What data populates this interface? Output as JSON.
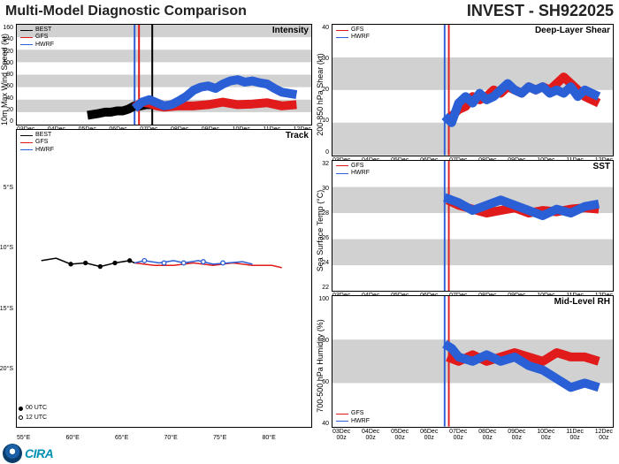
{
  "header": {
    "title_left": "Multi-Model Diagnostic Comparison",
    "title_right": "INVEST - SH922025"
  },
  "models": {
    "best": {
      "label": "BEST",
      "color": "#000000"
    },
    "gfs": {
      "label": "GFS",
      "color": "#e11b1b"
    },
    "hwrf": {
      "label": "HWRF",
      "color": "#2a5fd6"
    }
  },
  "colors": {
    "band": "#d1d1d1",
    "grid": "#c8c8c8",
    "bg": "#ffffff",
    "vline_gfs": "#e11b1b",
    "vline_hwrf": "#2a5fd6",
    "vline_best_main": "#000000"
  },
  "panels": {
    "intensity": {
      "title": "Intensity",
      "ylabel": "10m Max Wind Speed (kt)",
      "ylim": [
        0,
        160
      ],
      "ytick_step": 20,
      "bands_y": [
        [
          20,
          40
        ],
        [
          60,
          80
        ],
        [
          100,
          120
        ],
        [
          140,
          160
        ]
      ],
      "xlim": [
        0,
        10
      ],
      "xticks": [
        "03Dec\n00z",
        "04Dec\n00z",
        "05Dec\n00z",
        "06Dec\n00z",
        "07Dec\n00z",
        "08Dec\n00z",
        "09Dec\n00z",
        "10Dec\n00z",
        "11Dec\n00z",
        "12Dec\n00z"
      ],
      "vlines": [
        {
          "x": 4.0,
          "color": "#2a5fd6"
        },
        {
          "x": 4.15,
          "color": "#e11b1b"
        },
        {
          "x": 4.6,
          "color": "#000000"
        }
      ],
      "series": {
        "best": [
          [
            2.4,
            15
          ],
          [
            2.8,
            18
          ],
          [
            3.0,
            20
          ],
          [
            3.2,
            20
          ],
          [
            3.4,
            22
          ],
          [
            3.6,
            22
          ],
          [
            3.8,
            25
          ],
          [
            4.0,
            30
          ],
          [
            4.2,
            30
          ],
          [
            4.4,
            32
          ],
          [
            4.6,
            32
          ]
        ],
        "gfs": [
          [
            4.0,
            28
          ],
          [
            4.25,
            36
          ],
          [
            4.5,
            34
          ],
          [
            4.75,
            30
          ],
          [
            5.0,
            28
          ],
          [
            5.5,
            30
          ],
          [
            6.0,
            30
          ],
          [
            6.5,
            32
          ],
          [
            7.0,
            36
          ],
          [
            7.5,
            32
          ],
          [
            8.0,
            33
          ],
          [
            8.5,
            35
          ],
          [
            9.0,
            30
          ],
          [
            9.5,
            32
          ]
        ],
        "hwrf": [
          [
            4.0,
            26
          ],
          [
            4.25,
            36
          ],
          [
            4.5,
            40
          ],
          [
            4.75,
            35
          ],
          [
            5.0,
            30
          ],
          [
            5.25,
            32
          ],
          [
            5.5,
            38
          ],
          [
            5.75,
            45
          ],
          [
            6.0,
            55
          ],
          [
            6.25,
            60
          ],
          [
            6.5,
            62
          ],
          [
            6.75,
            58
          ],
          [
            7.0,
            65
          ],
          [
            7.25,
            70
          ],
          [
            7.5,
            72
          ],
          [
            7.75,
            68
          ],
          [
            8.0,
            70
          ],
          [
            8.25,
            67
          ],
          [
            8.5,
            65
          ],
          [
            8.75,
            58
          ],
          [
            9.0,
            52
          ],
          [
            9.25,
            50
          ],
          [
            9.5,
            48
          ]
        ]
      },
      "legend_pos": "top-left",
      "legend": [
        "best",
        "gfs",
        "hwrf"
      ]
    },
    "shear": {
      "title": "Deep-Layer Shear",
      "ylabel": "200-850 hPa Shear (kt)",
      "ylim": [
        0,
        40
      ],
      "ytick_step": 10,
      "bands_y": [
        [
          0,
          10
        ],
        [
          20,
          30
        ]
      ],
      "xlim": [
        0,
        10
      ],
      "xticks": [
        "03Dec\n00z",
        "04Dec\n00z",
        "05Dec\n00z",
        "06Dec\n00z",
        "07Dec\n00z",
        "08Dec\n00z",
        "09Dec\n00z",
        "10Dec\n00z",
        "11Dec\n00z",
        "12Dec\n00z"
      ],
      "vlines": [
        {
          "x": 4.0,
          "color": "#2a5fd6"
        },
        {
          "x": 4.15,
          "color": "#e11b1b"
        }
      ],
      "series": {
        "gfs": [
          [
            4.1,
            10
          ],
          [
            4.25,
            12
          ],
          [
            4.5,
            14
          ],
          [
            4.75,
            15
          ],
          [
            5.0,
            18
          ],
          [
            5.25,
            17
          ],
          [
            5.5,
            18
          ],
          [
            5.75,
            20
          ],
          [
            6.0,
            19
          ],
          [
            6.25,
            21
          ],
          [
            6.5,
            20
          ],
          [
            6.75,
            19
          ],
          [
            7.0,
            21
          ],
          [
            7.25,
            20
          ],
          [
            7.5,
            21
          ],
          [
            7.75,
            20
          ],
          [
            8.0,
            22
          ],
          [
            8.25,
            24
          ],
          [
            8.5,
            22
          ],
          [
            8.75,
            20
          ],
          [
            9.0,
            18
          ],
          [
            9.25,
            17
          ],
          [
            9.5,
            16
          ]
        ],
        "hwrf": [
          [
            4.0,
            12
          ],
          [
            4.25,
            10
          ],
          [
            4.5,
            16
          ],
          [
            4.75,
            18
          ],
          [
            5.0,
            16
          ],
          [
            5.25,
            19
          ],
          [
            5.5,
            17
          ],
          [
            5.75,
            18
          ],
          [
            6.0,
            20
          ],
          [
            6.25,
            22
          ],
          [
            6.5,
            20
          ],
          [
            6.75,
            19
          ],
          [
            7.0,
            21
          ],
          [
            7.25,
            20
          ],
          [
            7.5,
            21
          ],
          [
            7.75,
            19
          ],
          [
            8.0,
            20
          ],
          [
            8.25,
            19
          ],
          [
            8.5,
            21
          ],
          [
            8.75,
            18
          ],
          [
            9.0,
            20
          ],
          [
            9.25,
            19
          ],
          [
            9.5,
            18
          ]
        ]
      },
      "legend_pos": "top-left",
      "legend": [
        "gfs",
        "hwrf"
      ]
    },
    "sst": {
      "title": "SST",
      "ylabel": "Sea Surface Temp (°C)",
      "ylim": [
        22,
        32
      ],
      "ytick_step": 2,
      "bands_y": [
        [
          24,
          26
        ],
        [
          28,
          30
        ]
      ],
      "xlim": [
        0,
        10
      ],
      "xticks": [
        "03Dec\n00z",
        "04Dec\n00z",
        "05Dec\n00z",
        "06Dec\n00z",
        "07Dec\n00z",
        "08Dec\n00z",
        "09Dec\n00z",
        "10Dec\n00z",
        "11Dec\n00z",
        "12Dec\n00z"
      ],
      "vlines": [
        {
          "x": 4.0,
          "color": "#2a5fd6"
        },
        {
          "x": 4.15,
          "color": "#e11b1b"
        }
      ],
      "series": {
        "gfs": [
          [
            4.1,
            29
          ],
          [
            4.5,
            28.6
          ],
          [
            5.0,
            28.3
          ],
          [
            5.5,
            28
          ],
          [
            6.0,
            28.2
          ],
          [
            6.5,
            28.4
          ],
          [
            7.0,
            28
          ],
          [
            7.5,
            28.2
          ],
          [
            8.0,
            28.1
          ],
          [
            8.5,
            28.3
          ],
          [
            9.0,
            28.4
          ],
          [
            9.5,
            28.3
          ]
        ],
        "hwrf": [
          [
            4.0,
            29.2
          ],
          [
            4.5,
            28.8
          ],
          [
            5.0,
            28.2
          ],
          [
            5.5,
            28.6
          ],
          [
            6.0,
            29
          ],
          [
            6.5,
            28.6
          ],
          [
            7.0,
            28.2
          ],
          [
            7.5,
            27.8
          ],
          [
            8.0,
            28.3
          ],
          [
            8.5,
            28
          ],
          [
            9.0,
            28.5
          ],
          [
            9.5,
            28.7
          ]
        ]
      },
      "legend_pos": "top-left",
      "legend": [
        "gfs",
        "hwrf"
      ]
    },
    "rh": {
      "title": "Mid-Level RH",
      "ylabel": "700-500 hPa Humidity (%)",
      "ylim": [
        40,
        100
      ],
      "ytick_step": 20,
      "bands_y": [
        [
          60,
          80
        ]
      ],
      "xlim": [
        0,
        10
      ],
      "xticks": [
        "03Dec\n00z",
        "04Dec\n00z",
        "05Dec\n00z",
        "06Dec\n00z",
        "07Dec\n00z",
        "08Dec\n00z",
        "09Dec\n00z",
        "10Dec\n00z",
        "11Dec\n00z",
        "12Dec\n00z"
      ],
      "vlines": [
        {
          "x": 4.0,
          "color": "#2a5fd6"
        },
        {
          "x": 4.15,
          "color": "#e11b1b"
        }
      ],
      "series": {
        "gfs": [
          [
            4.1,
            72
          ],
          [
            4.5,
            70
          ],
          [
            5.0,
            73
          ],
          [
            5.5,
            70
          ],
          [
            6.0,
            72
          ],
          [
            6.5,
            74
          ],
          [
            7.0,
            72
          ],
          [
            7.5,
            70
          ],
          [
            8.0,
            74
          ],
          [
            8.5,
            72
          ],
          [
            9.0,
            72
          ],
          [
            9.5,
            70
          ]
        ],
        "hwrf": [
          [
            4.0,
            78
          ],
          [
            4.25,
            76
          ],
          [
            4.5,
            72
          ],
          [
            5.0,
            70
          ],
          [
            5.5,
            73
          ],
          [
            6.0,
            70
          ],
          [
            6.5,
            72
          ],
          [
            7.0,
            68
          ],
          [
            7.5,
            66
          ],
          [
            8.0,
            62
          ],
          [
            8.5,
            58
          ],
          [
            9.0,
            60
          ],
          [
            9.5,
            58
          ]
        ]
      },
      "legend_pos": "bot-left",
      "legend": [
        "gfs",
        "hwrf"
      ]
    },
    "track": {
      "title": "Track",
      "xlim": [
        55,
        85
      ],
      "ylim": [
        25,
        0
      ],
      "xticks": [
        "55°E",
        "60°E",
        "65°E",
        "70°E",
        "75°E",
        "80°E",
        ""
      ],
      "yticks": [
        "",
        "5°S",
        "10°S",
        "15°S",
        "20°S",
        ""
      ],
      "legend_pos": "top-left",
      "legend": [
        "best",
        "gfs",
        "hwrf"
      ],
      "utc_legend": [
        {
          "label": "00 UTC",
          "fill": "#000000"
        },
        {
          "label": "12 UTC",
          "fill": "none"
        }
      ],
      "series": {
        "best": [
          [
            57.5,
            11
          ],
          [
            59,
            10.8
          ],
          [
            60.5,
            11.3
          ],
          [
            62,
            11.2
          ],
          [
            63.5,
            11.5
          ],
          [
            65,
            11.2
          ],
          [
            66.5,
            11
          ],
          [
            67,
            11.2
          ]
        ],
        "gfs": [
          [
            67,
            11.2
          ],
          [
            69,
            11.4
          ],
          [
            71,
            11.4
          ],
          [
            73,
            11.2
          ],
          [
            75,
            11.4
          ],
          [
            77,
            11.2
          ],
          [
            79,
            11.4
          ],
          [
            81,
            11.4
          ],
          [
            82,
            11.6
          ]
        ],
        "hwrf": [
          [
            67,
            11.2
          ],
          [
            68,
            11
          ],
          [
            69.5,
            11.2
          ],
          [
            71,
            11
          ],
          [
            72,
            11.2
          ],
          [
            73.5,
            11
          ],
          [
            75,
            11.3
          ],
          [
            76.5,
            11.2
          ],
          [
            78,
            11.1
          ],
          [
            79,
            11.3
          ]
        ]
      },
      "markers": {
        "filled": [
          [
            60.5,
            11.3
          ],
          [
            63.5,
            11.5
          ],
          [
            62,
            11.2
          ],
          [
            65,
            11.2
          ],
          [
            66.5,
            11
          ]
        ],
        "open": [
          [
            68,
            11
          ],
          [
            70,
            11.2
          ],
          [
            72,
            11.2
          ],
          [
            74,
            11.1
          ],
          [
            76,
            11.2
          ]
        ]
      }
    }
  },
  "footer": {
    "org": "IRA"
  }
}
